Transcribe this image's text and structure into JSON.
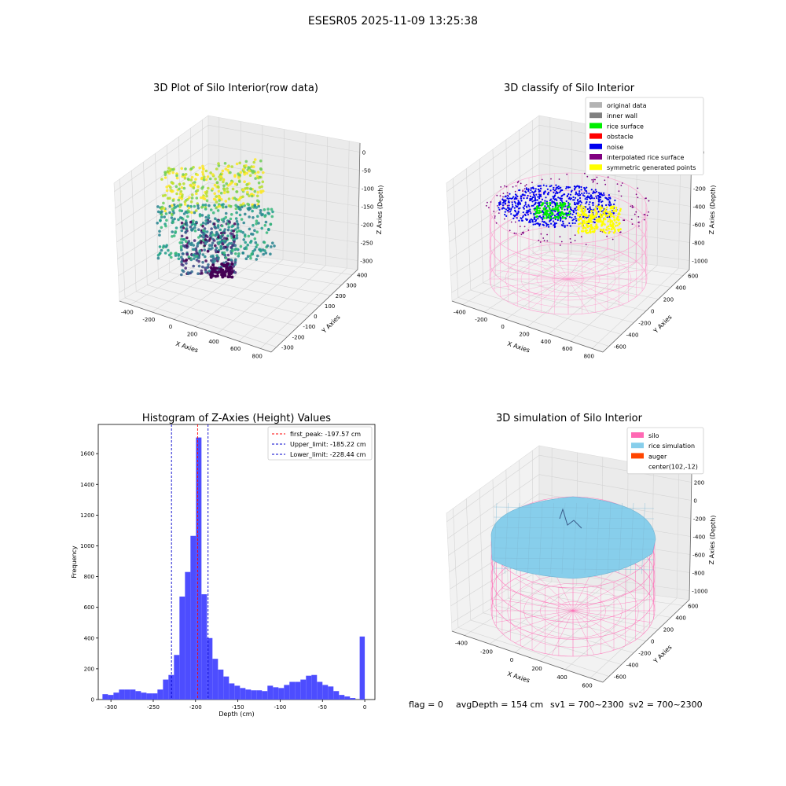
{
  "suptitle": "ESESR05 2025-11-09 13:25:38",
  "panels": {
    "raw": {
      "title": "3D Plot of Silo Interior(row data)",
      "xlabel": "X Axies",
      "ylabel": "Y Axies",
      "zlabel": "Z Axies (Depth)",
      "xticks": [
        "-400",
        "-200",
        "0",
        "200",
        "400",
        "600",
        "800"
      ],
      "yticks": [
        "-300",
        "-200",
        "-100",
        "0",
        "100",
        "200",
        "300",
        "400"
      ],
      "zticks": [
        "0",
        "-50",
        "-100",
        "-150",
        "-200",
        "-250",
        "-300"
      ]
    },
    "classify": {
      "title": "3D classify of Silo Interior",
      "xlabel": "X Axies",
      "ylabel": "Y Axies",
      "zlabel": "Z Axies (Depth)",
      "xticks": [
        "-400",
        "-200",
        "0",
        "200",
        "400",
        "600",
        "800"
      ],
      "yticks": [
        "-600",
        "-400",
        "-200",
        "0",
        "200",
        "400",
        "600"
      ],
      "zticks": [
        "200",
        "0",
        "-200",
        "-400",
        "-600",
        "-800",
        "-1000"
      ],
      "legend": [
        {
          "label": "original data",
          "color": "#b3b3b3"
        },
        {
          "label": "inner wall",
          "color": "#808080"
        },
        {
          "label": "rice surface",
          "color": "#00ee00"
        },
        {
          "label": "obstacle",
          "color": "#ff0000"
        },
        {
          "label": "noise",
          "color": "#0000ee"
        },
        {
          "label": "interpolated rice surface",
          "color": "#800080"
        },
        {
          "label": "symmetric generated points",
          "color": "#ffff00"
        }
      ]
    },
    "simulation": {
      "title": "3D simulation of Silo Interior",
      "xlabel": "X Axies",
      "ylabel": "Y Axies",
      "zlabel": "Z Axies (Depth)",
      "xticks": [
        "-400",
        "-200",
        "0",
        "200",
        "400",
        "600"
      ],
      "yticks": [
        "-600",
        "-400",
        "-200",
        "0",
        "200",
        "400",
        "600"
      ],
      "zticks": [
        "200",
        "0",
        "-200",
        "-400",
        "-600",
        "-800",
        "-1000"
      ],
      "legend": [
        {
          "label": "silo",
          "color": "#ff69b4"
        },
        {
          "label": "rice simulation",
          "color": "#87ceeb"
        },
        {
          "label": "auger",
          "color": "#ff4500"
        },
        {
          "label": "center(102,-12)",
          "color": ""
        }
      ]
    }
  },
  "chart_data": [
    {
      "type": "histogram",
      "title": "Histogram of Z-Axies (Height) Values",
      "xlabel": "Depth (cm)",
      "ylabel": "Frequency",
      "xlim": [
        -315,
        12
      ],
      "ylim": [
        0,
        1790
      ],
      "xticks": [
        -300,
        -250,
        -200,
        -150,
        -100,
        -50,
        0
      ],
      "yticks": [
        0,
        200,
        400,
        600,
        800,
        1000,
        1200,
        1400,
        1600
      ],
      "bar_color": "#4d4dff",
      "bins": [
        {
          "x0": -310,
          "x1": -303.5,
          "count": 35
        },
        {
          "x0": -303.5,
          "x1": -297,
          "count": 30
        },
        {
          "x0": -297,
          "x1": -290.5,
          "count": 45
        },
        {
          "x0": -290.5,
          "x1": -284,
          "count": 65
        },
        {
          "x0": -284,
          "x1": -277.5,
          "count": 65
        },
        {
          "x0": -277.5,
          "x1": -271,
          "count": 65
        },
        {
          "x0": -271,
          "x1": -264.5,
          "count": 55
        },
        {
          "x0": -264.5,
          "x1": -258,
          "count": 45
        },
        {
          "x0": -258,
          "x1": -251.5,
          "count": 40
        },
        {
          "x0": -251.5,
          "x1": -245,
          "count": 40
        },
        {
          "x0": -245,
          "x1": -238.5,
          "count": 65
        },
        {
          "x0": -238.5,
          "x1": -232,
          "count": 130
        },
        {
          "x0": -232,
          "x1": -225.5,
          "count": 160
        },
        {
          "x0": -225.5,
          "x1": -219,
          "count": 290
        },
        {
          "x0": -219,
          "x1": -212.5,
          "count": 670
        },
        {
          "x0": -212.5,
          "x1": -206,
          "count": 830
        },
        {
          "x0": -206,
          "x1": -199.5,
          "count": 1065
        },
        {
          "x0": -199.5,
          "x1": -193,
          "count": 1705
        },
        {
          "x0": -193,
          "x1": -186.5,
          "count": 685
        },
        {
          "x0": -186.5,
          "x1": -180,
          "count": 400
        },
        {
          "x0": -180,
          "x1": -173.5,
          "count": 265
        },
        {
          "x0": -173.5,
          "x1": -167,
          "count": 195
        },
        {
          "x0": -167,
          "x1": -160.5,
          "count": 150
        },
        {
          "x0": -160.5,
          "x1": -154,
          "count": 105
        },
        {
          "x0": -154,
          "x1": -147.5,
          "count": 90
        },
        {
          "x0": -147.5,
          "x1": -141,
          "count": 75
        },
        {
          "x0": -141,
          "x1": -134.5,
          "count": 65
        },
        {
          "x0": -134.5,
          "x1": -128,
          "count": 60
        },
        {
          "x0": -128,
          "x1": -121.5,
          "count": 60
        },
        {
          "x0": -121.5,
          "x1": -115,
          "count": 55
        },
        {
          "x0": -115,
          "x1": -108.5,
          "count": 90
        },
        {
          "x0": -108.5,
          "x1": -102,
          "count": 80
        },
        {
          "x0": -102,
          "x1": -95.5,
          "count": 75
        },
        {
          "x0": -95.5,
          "x1": -89,
          "count": 95
        },
        {
          "x0": -89,
          "x1": -82.5,
          "count": 115
        },
        {
          "x0": -82.5,
          "x1": -76,
          "count": 115
        },
        {
          "x0": -76,
          "x1": -69.5,
          "count": 130
        },
        {
          "x0": -69.5,
          "x1": -63,
          "count": 155
        },
        {
          "x0": -63,
          "x1": -56.5,
          "count": 160
        },
        {
          "x0": -56.5,
          "x1": -50,
          "count": 115
        },
        {
          "x0": -50,
          "x1": -43.5,
          "count": 95
        },
        {
          "x0": -43.5,
          "x1": -37,
          "count": 85
        },
        {
          "x0": -37,
          "x1": -30.5,
          "count": 55
        },
        {
          "x0": -30.5,
          "x1": -24,
          "count": 30
        },
        {
          "x0": -24,
          "x1": -17.5,
          "count": 20
        },
        {
          "x0": -17.5,
          "x1": -11,
          "count": 10
        },
        {
          "x0": -6,
          "x1": 0,
          "count": 410
        }
      ],
      "vlines": [
        {
          "label": "first_peak: -197.57 cm",
          "x": -197.57,
          "color": "#ff0000"
        },
        {
          "label": "Upper_limit: -185.22 cm",
          "x": -185.22,
          "color": "#0000cc"
        },
        {
          "label": "Lower_limit: -228.44 cm",
          "x": -228.44,
          "color": "#0000cc"
        }
      ],
      "legend_position": "top-right"
    }
  ],
  "footer": {
    "flag": "flag = 0",
    "avg": "avgDepth = 154 cm",
    "sv1": "sv1 = 700~2300",
    "sv2": "sv2 = 700~2300"
  }
}
